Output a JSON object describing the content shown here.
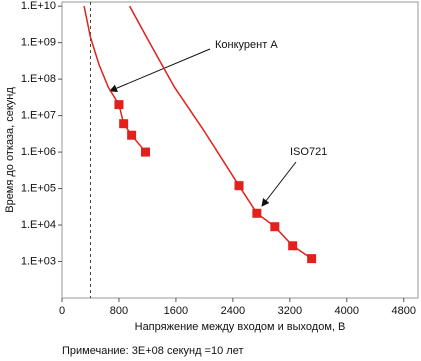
{
  "chart_data": {
    "type": "scatter",
    "x_label": "Напряжение между входом и выходом, В",
    "y_label": "Время до отказа, секунд",
    "note": "Примечание: 3E+08 секунд =10 лет",
    "xlim": [
      0,
      5000
    ],
    "xticks": [
      0,
      800,
      1600,
      2400,
      3200,
      4000,
      4800
    ],
    "ylim": [
      100,
      13000000000
    ],
    "log_y": true,
    "yticks": [
      {
        "value": 1000,
        "label": "1.E+03"
      },
      {
        "value": 10000,
        "label": "1.E+04"
      },
      {
        "value": 100000,
        "label": "1.E+05"
      },
      {
        "value": 1000000,
        "label": "1.E+06"
      },
      {
        "value": 10000000,
        "label": "1.E+07"
      },
      {
        "value": 100000000,
        "label": "1.E+08"
      },
      {
        "value": 1000000000,
        "label": "1.E+09"
      },
      {
        "value": 10000000000,
        "label": "1.E+10"
      }
    ],
    "reference_x": 400,
    "series": [
      {
        "name": "Конкурент А",
        "color": "#e3201b",
        "x": [
          800,
          866,
          978,
          1173
        ],
        "values": [
          20000000,
          6000000,
          2900000,
          1000000
        ],
        "curve": {
          "x": [
            310,
            400,
            520,
            650,
            800,
            866,
            978,
            1173
          ],
          "values": [
            10000000000,
            1400000000,
            250000000,
            60000000,
            20000000,
            6000000,
            2900000,
            1000000
          ]
        }
      },
      {
        "name": "ISO721",
        "color": "#e3201b",
        "x": [
          2486,
          2737,
          2989,
          3240,
          3506
        ],
        "values": [
          120000,
          21000,
          9000,
          2700,
          1200
        ],
        "curve": {
          "x": [
            950,
            1230,
            1580,
            2000,
            2486,
            2737,
            2989,
            3240,
            3506
          ],
          "values": [
            10000000000,
            1000000000,
            60000000,
            3700000,
            120000,
            21000,
            9000,
            2700,
            1200
          ]
        }
      }
    ]
  }
}
